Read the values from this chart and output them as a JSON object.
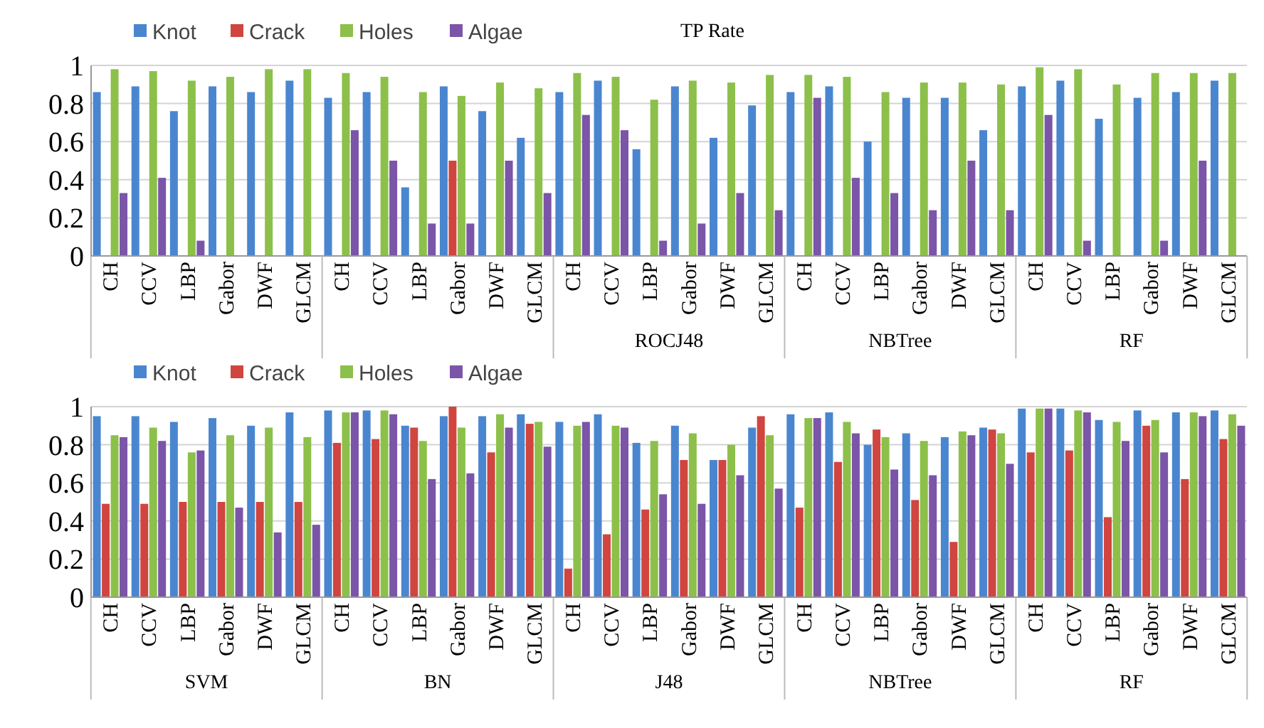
{
  "chart_data": [
    {
      "type": "bar",
      "title": "TP Rate",
      "categories": [
        "CH",
        "CCV",
        "LBP",
        "Gabor",
        "DWF",
        "GLCM",
        "CH",
        "CCV",
        "LBP",
        "Gabor",
        "DWF",
        "GLCM",
        "CH",
        "CCV",
        "LBP",
        "Gabor",
        "DWF",
        "GLCM",
        "CH",
        "CCV",
        "LBP",
        "Gabor",
        "DWF",
        "GLCM",
        "CH",
        "CCV",
        "LBP",
        "Gabor",
        "DWF",
        "GLCM"
      ],
      "series": [
        {
          "name": "Knot",
          "color": "#4a86d0",
          "values": [
            0.86,
            0.89,
            0.76,
            0.89,
            0.86,
            0.92,
            0.83,
            0.86,
            0.36,
            0.89,
            0.76,
            0.62,
            0.86,
            0.92,
            0.56,
            0.89,
            0.62,
            0.79,
            0.86,
            0.89,
            0.6,
            0.83,
            0.83,
            0.66,
            0.89,
            0.92,
            0.72,
            0.83,
            0.86,
            0.92
          ]
        },
        {
          "name": "Crack",
          "color": "#d0453f",
          "values": [
            0,
            0,
            0,
            0,
            0,
            0,
            0,
            0,
            0,
            0.5,
            0,
            0,
            0,
            0,
            0,
            0,
            0,
            0,
            0,
            0,
            0,
            0,
            0,
            0,
            0,
            0,
            0,
            0,
            0,
            0
          ]
        },
        {
          "name": "Holes",
          "color": "#8cc04a",
          "values": [
            0.98,
            0.97,
            0.92,
            0.94,
            0.98,
            0.98,
            0.96,
            0.94,
            0.86,
            0.84,
            0.91,
            0.88,
            0.96,
            0.94,
            0.82,
            0.92,
            0.91,
            0.95,
            0.95,
            0.94,
            0.86,
            0.91,
            0.91,
            0.9,
            0.99,
            0.98,
            0.9,
            0.96,
            0.96,
            0.96
          ]
        },
        {
          "name": "Algae",
          "color": "#7b55a8",
          "values": [
            0.33,
            0.41,
            0.08,
            0,
            0,
            0,
            0.66,
            0.5,
            0.17,
            0.17,
            0.5,
            0.33,
            0.74,
            0.66,
            0.08,
            0.17,
            0.33,
            0.24,
            0.83,
            0.41,
            0.33,
            0.24,
            0.5,
            0.24,
            0.74,
            0.08,
            0,
            0.08,
            0.5,
            0
          ]
        }
      ],
      "ylim": [
        0,
        1
      ],
      "yticks": [
        0,
        0.2,
        0.4,
        0.6,
        0.8,
        1
      ],
      "grid": "y",
      "legend": "top left",
      "annotations": [
        "ROCJ48",
        "NBTree",
        "RF"
      ]
    },
    {
      "type": "bar",
      "categories": [
        "CH",
        "CCV",
        "LBP",
        "Gabor",
        "DWF",
        "GLCM",
        "CH",
        "CCV",
        "LBP",
        "Gabor",
        "DWF",
        "GLCM",
        "CH",
        "CCV",
        "LBP",
        "Gabor",
        "DWF",
        "GLCM",
        "CH",
        "CCV",
        "LBP",
        "Gabor",
        "DWF",
        "GLCM",
        "CH",
        "CCV",
        "LBP",
        "Gabor",
        "DWF",
        "GLCM"
      ],
      "series": [
        {
          "name": "Knot",
          "color": "#4a86d0",
          "values": [
            0.95,
            0.95,
            0.92,
            0.94,
            0.9,
            0.97,
            0.98,
            0.98,
            0.9,
            0.95,
            0.95,
            0.96,
            0.92,
            0.96,
            0.81,
            0.9,
            0.72,
            0.89,
            0.96,
            0.97,
            0.8,
            0.86,
            0.84,
            0.89,
            0.99,
            0.99,
            0.93,
            0.98,
            0.97,
            0.98
          ]
        },
        {
          "name": "Crack",
          "color": "#d0453f",
          "values": [
            0.49,
            0.49,
            0.5,
            0.5,
            0.5,
            0.5,
            0.81,
            0.83,
            0.89,
            1.0,
            0.76,
            0.91,
            0.15,
            0.33,
            0.46,
            0.72,
            0.72,
            0.95,
            0.47,
            0.71,
            0.88,
            0.51,
            0.29,
            0.88,
            0.76,
            0.77,
            0.42,
            0.9,
            0.62,
            0.83
          ]
        },
        {
          "name": "Holes",
          "color": "#8cc04a",
          "values": [
            0.85,
            0.89,
            0.76,
            0.85,
            0.89,
            0.84,
            0.97,
            0.98,
            0.82,
            0.89,
            0.96,
            0.92,
            0.9,
            0.9,
            0.82,
            0.86,
            0.8,
            0.85,
            0.94,
            0.92,
            0.84,
            0.82,
            0.87,
            0.86,
            0.99,
            0.98,
            0.92,
            0.93,
            0.97,
            0.96
          ]
        },
        {
          "name": "Algae",
          "color": "#7b55a8",
          "values": [
            0.84,
            0.82,
            0.77,
            0.47,
            0.34,
            0.38,
            0.97,
            0.96,
            0.62,
            0.65,
            0.89,
            0.79,
            0.92,
            0.89,
            0.54,
            0.49,
            0.64,
            0.57,
            0.94,
            0.86,
            0.67,
            0.64,
            0.85,
            0.7,
            0.99,
            0.97,
            0.82,
            0.76,
            0.95,
            0.9
          ]
        }
      ],
      "ylim": [
        0,
        1
      ],
      "yticks": [
        0,
        0.2,
        0.4,
        0.6,
        0.8,
        1
      ],
      "grid": "y",
      "legend": "top left",
      "annotations": [
        "SVM",
        "BN",
        "J48",
        "NBTree",
        "RF"
      ]
    }
  ]
}
